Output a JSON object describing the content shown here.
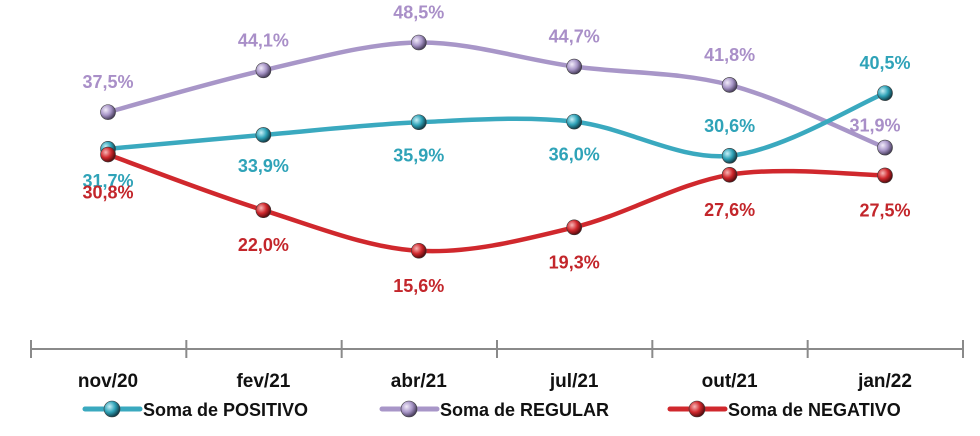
{
  "chart_data": {
    "type": "line",
    "categories": [
      "nov/20",
      "fev/21",
      "abr/21",
      "jul/21",
      "out/21",
      "jan/22"
    ],
    "series": [
      {
        "name": "Soma de POSITIVO",
        "values": [
          31.7,
          33.9,
          35.9,
          36.0,
          30.6,
          40.5
        ],
        "labels": [
          "31,7%",
          "33,9%",
          "35,9%",
          "36,0%",
          "30,6%",
          "40,5%"
        ],
        "color": "#3aa9bf",
        "label_color": "#2fa3b8"
      },
      {
        "name": "Soma de REGULAR",
        "values": [
          37.5,
          44.1,
          48.5,
          44.7,
          41.8,
          31.9
        ],
        "labels": [
          "37,5%",
          "44,1%",
          "48,5%",
          "44,7%",
          "41,8%",
          "31,9%"
        ],
        "color": "#a896c8",
        "label_color": "#a98fc8"
      },
      {
        "name": "Soma de NEGATIVO",
        "values": [
          30.8,
          22.0,
          15.6,
          19.3,
          27.6,
          27.5
        ],
        "labels": [
          "30,8%",
          "22,0%",
          "15,6%",
          "19,3%",
          "27,6%",
          "27,5%"
        ],
        "color": "#d0282d",
        "label_color": "#c3262b"
      }
    ],
    "legend_position": "bottom",
    "grid": false
  }
}
